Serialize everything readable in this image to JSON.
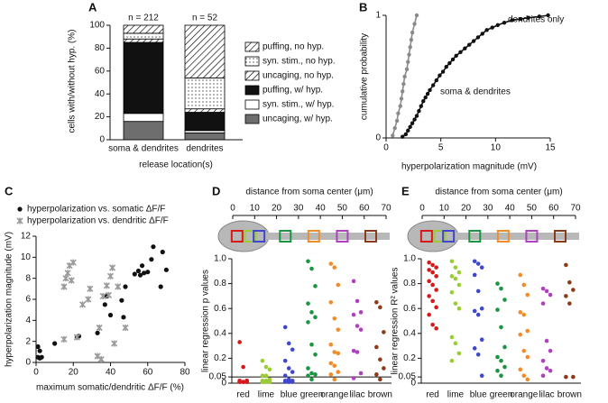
{
  "chart_data": [
    {
      "type": "bar",
      "label": "A",
      "stacked": true,
      "categories": [
        "soma & dendrites",
        "dendrites"
      ],
      "annotations": [
        "n = 212",
        "n = 52"
      ],
      "x_label": "release location(s)",
      "y_label": "cells with/without hyp. (%)",
      "ylim": [
        0,
        100
      ],
      "yticks": [
        0,
        20,
        40,
        60,
        80,
        100
      ],
      "series": [
        {
          "name": "uncaging, w/ hyp.",
          "color": "#6e6e6e",
          "values": [
            16,
            6
          ]
        },
        {
          "name": "syn. stim., w/ hyp.",
          "color": "#ffffff",
          "values": [
            7,
            2
          ]
        },
        {
          "name": "puffing, w/ hyp.",
          "color": "#111111",
          "values": [
            62,
            16
          ]
        },
        {
          "name": "uncaging, no hyp.",
          "color": "#000000",
          "pattern": "hatch",
          "values": [
            3,
            3
          ]
        },
        {
          "name": "syn. stim., no hyp.",
          "color": "#000000",
          "pattern": "dots",
          "values": [
            5,
            27
          ]
        },
        {
          "name": "puffing, no hyp.",
          "color": "#000000",
          "pattern": "hatch",
          "values": [
            7,
            46
          ]
        }
      ]
    },
    {
      "type": "line",
      "label": "B",
      "x_label": "hyperpolarization magnitude (mV)",
      "y_label": "cumulative probability",
      "xlim": [
        0,
        15
      ],
      "xticks": [
        0,
        5,
        10,
        15
      ],
      "ylim": [
        0,
        1
      ],
      "yticks": [
        0,
        1
      ],
      "series": [
        {
          "name": "dendrites only",
          "color": "#8a8a8a",
          "x": [
            0.6,
            0.8,
            1.0,
            1.1,
            1.3,
            1.4,
            1.5,
            1.6,
            1.7,
            1.9,
            2.0,
            2.1,
            2.2,
            2.3,
            2.4,
            2.6,
            2.8
          ],
          "values": [
            0.02,
            0.08,
            0.14,
            0.2,
            0.26,
            0.32,
            0.38,
            0.44,
            0.5,
            0.56,
            0.62,
            0.68,
            0.74,
            0.8,
            0.86,
            0.93,
            1.0
          ]
        },
        {
          "name": "soma & dendrites",
          "color": "#111111",
          "x": [
            1.5,
            1.8,
            2.0,
            2.2,
            2.4,
            2.6,
            2.8,
            3.0,
            3.2,
            3.4,
            3.6,
            3.8,
            4.0,
            4.3,
            4.6,
            4.9,
            5.2,
            5.5,
            5.8,
            6.1,
            6.4,
            6.8,
            7.2,
            7.6,
            8.0,
            8.4,
            8.8,
            9.2,
            9.7,
            10.2,
            10.8,
            11.5,
            12.3,
            13.0,
            14.0,
            14.8
          ],
          "values": [
            0.01,
            0.03,
            0.06,
            0.09,
            0.12,
            0.15,
            0.18,
            0.22,
            0.26,
            0.3,
            0.33,
            0.36,
            0.39,
            0.43,
            0.47,
            0.51,
            0.54,
            0.58,
            0.61,
            0.64,
            0.67,
            0.7,
            0.73,
            0.76,
            0.79,
            0.82,
            0.85,
            0.88,
            0.9,
            0.92,
            0.94,
            0.96,
            0.97,
            0.98,
            0.99,
            1.0
          ]
        }
      ]
    },
    {
      "type": "scatter",
      "label": "C",
      "x_label": "maximum somatic/dendritic ΔF/F (%)",
      "y_label": "hyperpolarization magnitude (mV)",
      "xlim": [
        0,
        80
      ],
      "xticks": [
        0,
        20,
        40,
        60,
        80
      ],
      "ylim": [
        0,
        12
      ],
      "yticks": [
        0,
        2,
        4,
        6,
        8,
        10,
        12
      ],
      "series": [
        {
          "name": "hyperpolarization vs. somatic ΔF/F",
          "color": "#111111",
          "marker": "circle",
          "x": [
            1,
            1,
            2,
            3,
            2,
            10,
            22,
            23,
            33,
            37,
            38,
            40,
            46,
            47,
            48,
            53,
            55,
            56,
            57,
            58,
            60,
            62,
            63,
            67,
            68,
            70
          ],
          "values": [
            1.5,
            0.5,
            0.4,
            0.5,
            1.1,
            1.8,
            2.4,
            2.5,
            2.8,
            5.5,
            6.3,
            4.5,
            5.9,
            4.3,
            7.2,
            8.4,
            8.7,
            8.3,
            9.2,
            8.5,
            8.6,
            9.8,
            11,
            7.2,
            10.5,
            8.8
          ]
        },
        {
          "name": "hyperpolarization vs. dendritic ΔF/F",
          "color": "#9a9a9a",
          "marker": "cross",
          "x": [
            15,
            15,
            16,
            17,
            18,
            19,
            20,
            22,
            25,
            28,
            29,
            33,
            35,
            34,
            36,
            38,
            39,
            40,
            41,
            42,
            44,
            48
          ],
          "values": [
            2.2,
            7.2,
            8.0,
            8.5,
            9.2,
            7.8,
            9.5,
            2.4,
            5.5,
            6,
            7,
            0.6,
            0.3,
            3.3,
            6.3,
            7.3,
            6.4,
            8.2,
            9.0,
            1.8,
            7.2,
            3.3
          ]
        }
      ]
    },
    {
      "type": "strip",
      "label": "D",
      "top_axis_label": "distance from soma center (μm)",
      "xlim": [
        0,
        70
      ],
      "xticks": [
        0,
        10,
        20,
        30,
        40,
        50,
        60,
        70
      ],
      "distances": [
        2,
        8,
        12,
        24,
        37,
        50,
        63
      ],
      "y_label": "linear regression p values",
      "ylim": [
        0,
        1
      ],
      "yticks": [
        0,
        0.05,
        0.2,
        0.4,
        0.6,
        0.8,
        {
          "value": 1,
          "label": "1.0"
        }
      ],
      "threshold": 0.05,
      "categories": [
        "red",
        "lime",
        "blue",
        "green",
        "orange",
        "lilac",
        "brown"
      ],
      "colors": [
        "#d7191c",
        "#9acd32",
        "#3f48cc",
        "#1a9641",
        "#f28c28",
        "#b040c0",
        "#8b3a1a"
      ],
      "values": [
        [
          0.33,
          0.13,
          0.01,
          0.01,
          0.01,
          0.02,
          0.02,
          0.01,
          0.02,
          0.01,
          0.01,
          0.01
        ],
        [
          0.18,
          0.13,
          0.11,
          0.06,
          0.06,
          0.03,
          0.02,
          0.02,
          0.01,
          0.01,
          0.01,
          0.01,
          0.01
        ],
        [
          0.45,
          0.32,
          0.27,
          0.18,
          0.12,
          0.09,
          0.06,
          0.03,
          0.02,
          0.02,
          0.01,
          0.01,
          0.01,
          0.01
        ],
        [
          0.98,
          0.92,
          0.78,
          0.64,
          0.57,
          0.53,
          0.49,
          0.31,
          0.23,
          0.12,
          0.08,
          0.07,
          0.06,
          0.03
        ],
        [
          0.96,
          0.93,
          0.79,
          0.65,
          0.52,
          0.43,
          0.31,
          0.25,
          0.24,
          0.16,
          0.14,
          0.09,
          0.07,
          0.03
        ],
        [
          0.82,
          0.66,
          0.57,
          0.55,
          0.46,
          0.43,
          0.26,
          0.25,
          0.08,
          0.04
        ],
        [
          0.65,
          0.61,
          0.41,
          0.29,
          0.19,
          0.12,
          0.07,
          0.03
        ]
      ]
    },
    {
      "type": "strip",
      "label": "E",
      "top_axis_label": "distance from soma center (μm)",
      "xlim": [
        0,
        70
      ],
      "xticks": [
        0,
        10,
        20,
        30,
        40,
        50,
        60,
        70
      ],
      "distances": [
        2,
        8,
        12,
        24,
        37,
        50,
        63
      ],
      "y_label": "linear regression R² values",
      "ylim": [
        0,
        1
      ],
      "yticks": [
        0,
        0.05,
        0.2,
        0.4,
        0.6,
        0.8,
        {
          "value": 1,
          "label": "1.0"
        }
      ],
      "categories": [
        "red",
        "lime",
        "blue",
        "green",
        "orange",
        "lilac",
        "brown"
      ],
      "colors": [
        "#d7191c",
        "#9acd32",
        "#3f48cc",
        "#1a9641",
        "#f28c28",
        "#b040c0",
        "#8b3a1a"
      ],
      "values": [
        [
          0.97,
          0.95,
          0.93,
          0.91,
          0.89,
          0.86,
          0.82,
          0.79,
          0.75,
          0.7,
          0.66,
          0.61,
          0.55,
          0.47,
          0.44
        ],
        [
          0.98,
          0.93,
          0.89,
          0.86,
          0.84,
          0.79,
          0.73,
          0.64,
          0.6,
          0.37,
          0.32,
          0.24,
          0.18
        ],
        [
          0.98,
          0.96,
          0.93,
          0.87,
          0.74,
          0.6,
          0.58,
          0.55,
          0.35,
          0.28,
          0.23,
          0.06
        ],
        [
          0.8,
          0.76,
          0.67,
          0.59,
          0.45,
          0.29,
          0.21,
          0.18,
          0.13,
          0.1,
          0.06
        ],
        [
          0.87,
          0.79,
          0.71,
          0.57,
          0.55,
          0.42,
          0.39,
          0.26,
          0.21,
          0.11,
          0.06,
          0.03
        ],
        [
          0.76,
          0.74,
          0.71,
          0.64,
          0.34,
          0.26,
          0.18,
          0.12,
          0.1,
          0.06
        ],
        [
          0.95,
          0.81,
          0.75,
          0.7,
          0.64,
          0.05,
          0.05
        ]
      ]
    }
  ]
}
